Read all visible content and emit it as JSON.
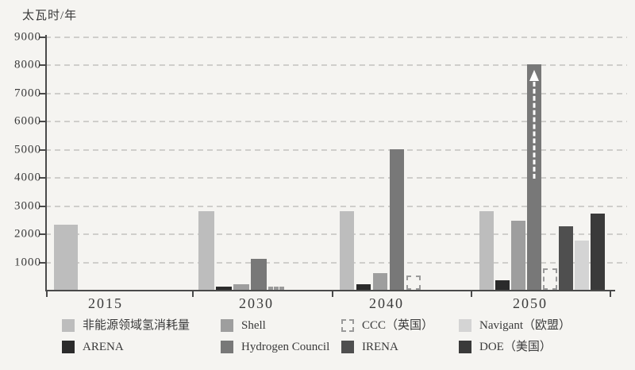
{
  "chart_data": {
    "type": "bar",
    "title": "太瓦时/年",
    "ylabel": "太瓦时/年",
    "xlabel": "",
    "ylim": [
      0,
      9000
    ],
    "ytick_interval": 1000,
    "yticks": [
      "1000",
      "2000",
      "3000",
      "4000",
      "5000",
      "6000",
      "7000",
      "8000",
      "9000"
    ],
    "grid": "horizontal-dashed",
    "legend_position": "bottom",
    "categories": [
      "2015",
      "2030",
      "2040",
      "2050"
    ],
    "series": [
      {
        "name": "非能源领域氢消耗量",
        "color": "#bdbdbd",
        "values": [
          2300,
          2800,
          2800,
          2800
        ]
      },
      {
        "name": "ARENA",
        "color": "#2b2b2b",
        "values": [
          null,
          100,
          200,
          350
        ]
      },
      {
        "name": "Shell",
        "color": "#9e9e9e",
        "values": [
          null,
          200,
          600,
          2450
        ]
      },
      {
        "name": "Hydrogen Council",
        "color": "#787878",
        "values": [
          null,
          1100,
          5000,
          8000
        ],
        "arrow": {
          "category": "2050",
          "style": "white-dashed-up-arrow",
          "meaning": "exceeds-axis"
        }
      },
      {
        "name": "CCC（英国）",
        "color": "transparent",
        "style": "dashed-outline",
        "border_color": "#9a9a9a",
        "values": [
          null,
          100,
          500,
          750
        ]
      },
      {
        "name": "IRENA",
        "color": "#4f4f4f",
        "values": [
          null,
          null,
          null,
          2250
        ]
      },
      {
        "name": "Navigant（欧盟）",
        "color": "#d4d4d4",
        "values": [
          null,
          null,
          null,
          1750
        ]
      },
      {
        "name": "DOE（美国）",
        "color": "#3a3a3a",
        "values": [
          null,
          null,
          null,
          2700
        ]
      }
    ],
    "legend_rows": [
      [
        0,
        2,
        4,
        6
      ],
      [
        1,
        3,
        5,
        7
      ]
    ],
    "colors": {
      "background": "#f5f4f1",
      "text": "#3a3a3a",
      "axis": "#4a4a4a",
      "gridline": "#cfcecb",
      "arrow": "#ffffff"
    }
  }
}
